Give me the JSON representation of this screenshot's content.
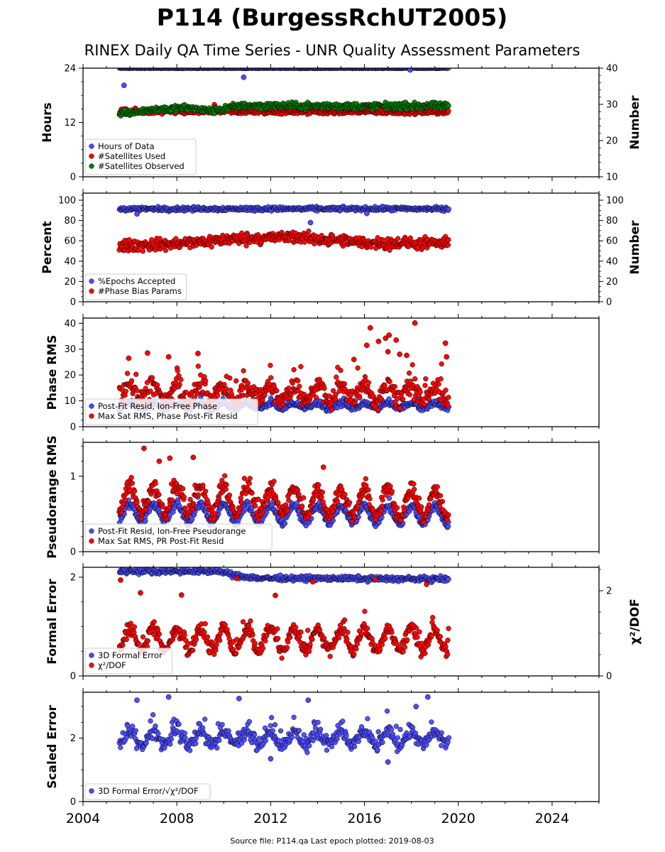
{
  "title": "P114 (BurgessRchUT2005)",
  "subtitle": "RINEX Daily QA Time Series - UNR Quality Assessment Parameters",
  "footer": "Source file: P114.qa Last epoch plotted: 2019-08-03",
  "colors": {
    "blue": "#4b4bff",
    "red": "#ff0000",
    "green": "#008000",
    "edge": "#000000"
  },
  "chart_data": [
    {
      "type": "scatter",
      "xlim": [
        2004,
        2026
      ],
      "xticks": [
        "2004",
        "2008",
        "2012",
        "2016",
        "2020",
        "2024"
      ],
      "ylabel": "Hours",
      "ylim": [
        0,
        24
      ],
      "yticks": [
        "0",
        "12",
        "24"
      ],
      "y2label": "Number",
      "y2lim": [
        10,
        40
      ],
      "y2ticks": [
        "10",
        "20",
        "30",
        "40"
      ],
      "legend": "lower-left",
      "series": [
        {
          "name": "Hours of Data",
          "color": "blue",
          "axis": "left",
          "x_range": [
            2005.55,
            2019.59
          ],
          "mean": 24.0,
          "spread": 0.05,
          "outliers": [
            [
              2005.75,
              20.2
            ],
            [
              2010.85,
              22.0
            ],
            [
              2017.95,
              23.6
            ]
          ]
        },
        {
          "name": "#Satellites Used",
          "color": "red",
          "axis": "right",
          "x_range": [
            2005.55,
            2019.59
          ],
          "mean": 28.0,
          "spread": 0.6,
          "outliers": [
            [
              2009.6,
              29.9
            ]
          ]
        },
        {
          "name": "#Satellites Observed",
          "color": "green",
          "axis": "right",
          "x_range": [
            2005.55,
            2019.59
          ],
          "segments": [
            [
              2005.55,
              27.5
            ],
            [
              2006.2,
              28.0
            ],
            [
              2007.0,
              28.6
            ],
            [
              2008.5,
              29.0
            ],
            [
              2009.5,
              28.2
            ],
            [
              2010.7,
              29.7
            ],
            [
              2013.0,
              29.6
            ],
            [
              2016.0,
              29.5
            ],
            [
              2019.59,
              29.6
            ]
          ],
          "spread": 0.7
        }
      ]
    },
    {
      "type": "scatter",
      "xlim": [
        2004,
        2026
      ],
      "ylabel": "Percent",
      "ylim": [
        0,
        107
      ],
      "yticks": [
        "0",
        "20",
        "40",
        "60",
        "80",
        "100"
      ],
      "y2label": "Number",
      "y2lim": [
        0,
        107
      ],
      "y2ticks": [
        "0",
        "20",
        "40",
        "60",
        "80",
        "100"
      ],
      "legend": "lower-left",
      "series": [
        {
          "name": "%Epochs Accepted",
          "color": "blue",
          "axis": "left",
          "x_range": [
            2005.55,
            2019.59
          ],
          "mean": 91.5,
          "spread": 1.6,
          "outliers": [
            [
              2013.7,
              78.0
            ],
            [
              2006.3,
              86.5
            ],
            [
              2016.1,
              87.0
            ]
          ]
        },
        {
          "name": "#Phase Bias Params",
          "color": "red",
          "axis": "right",
          "x_range": [
            2005.55,
            2019.59
          ],
          "segments": [
            [
              2005.55,
              55
            ],
            [
              2008.0,
              57
            ],
            [
              2010.5,
              62
            ],
            [
              2013.0,
              64
            ],
            [
              2016.0,
              58
            ],
            [
              2019.59,
              57
            ]
          ],
          "spread": 4.5
        }
      ]
    },
    {
      "type": "scatter",
      "xlim": [
        2004,
        2026
      ],
      "ylabel": "Phase RMS",
      "ylim": [
        0,
        42
      ],
      "yticks": [
        "0",
        "10",
        "20",
        "30",
        "40"
      ],
      "legend": "lower-left",
      "series": [
        {
          "name": "Post-Fit Resid, Ion-Free Phase",
          "color": "blue",
          "axis": "left",
          "x_range": [
            2005.55,
            2019.59
          ],
          "mean": 8.0,
          "spread": 0.8,
          "seasonal": 1.0
        },
        {
          "name": "Max Sat RMS, Phase Post-Fit Resid",
          "color": "red",
          "axis": "left",
          "x_range": [
            2005.55,
            2019.59
          ],
          "mean": 13.0,
          "spread": 3.0,
          "seasonal": 3.0,
          "outliers": [
            [
              2016.25,
              38.2
            ],
            [
              2016.1,
              31.5
            ],
            [
              2016.6,
              33.0
            ],
            [
              2016.9,
              34.2
            ],
            [
              2017.05,
              35.4
            ],
            [
              2017.35,
              33.5
            ],
            [
              2018.15,
              40.1
            ],
            [
              2019.45,
              32.3
            ],
            [
              2019.5,
              27.0
            ],
            [
              2017.0,
              29.0
            ],
            [
              2017.5,
              28.0
            ],
            [
              2017.8,
              27.6
            ],
            [
              2015.55,
              26.0
            ],
            [
              2006.75,
              28.5
            ],
            [
              2008.9,
              28.3
            ],
            [
              2007.65,
              27.0
            ],
            [
              2005.95,
              26.5
            ]
          ]
        }
      ]
    },
    {
      "type": "scatter",
      "xlim": [
        2004,
        2026
      ],
      "ylabel": "Pseudorange RMS",
      "ylim": [
        0,
        1.45
      ],
      "yticks": [
        "0",
        "1"
      ],
      "legend": "lower-left",
      "series": [
        {
          "name": "Post-Fit Resid, Ion-Free Pseudorange",
          "color": "blue",
          "axis": "left",
          "x_range": [
            2005.55,
            2019.59
          ],
          "mean": 0.52,
          "spread": 0.04,
          "seasonal": 0.12,
          "trend": -0.003
        },
        {
          "name": "Max Sat RMS, PR Post-Fit Resid",
          "color": "red",
          "axis": "left",
          "x_range": [
            2005.55,
            2019.59
          ],
          "mean": 0.7,
          "spread": 0.07,
          "seasonal": 0.18,
          "trend": -0.005,
          "outliers": [
            [
              2006.6,
              1.37
            ],
            [
              2007.7,
              1.24
            ],
            [
              2008.7,
              1.25
            ],
            [
              2007.25,
              1.2
            ],
            [
              2014.25,
              1.12
            ]
          ]
        }
      ]
    },
    {
      "type": "scatter",
      "xlim": [
        2004,
        2026
      ],
      "ylabel": "Formal Error",
      "ylim": [
        0,
        2.2
      ],
      "yticks": [
        "0",
        "2"
      ],
      "y2label": "χ²/DOF",
      "y2lim": [
        0,
        2.55
      ],
      "y2ticks": [
        "0",
        "2"
      ],
      "legend": "lower-left",
      "series": [
        {
          "name": "3D Formal Error",
          "color": "blue",
          "axis": "left",
          "x_range": [
            2005.55,
            2019.59
          ],
          "segments": [
            [
              2005.55,
              2.12
            ],
            [
              2009.8,
              2.12
            ],
            [
              2010.3,
              2.05
            ],
            [
              2011.5,
              1.98
            ],
            [
              2016.0,
              1.97
            ],
            [
              2019.59,
              1.96
            ]
          ],
          "spread": 0.04
        },
        {
          "name": "χ²/DOF",
          "color": "red",
          "axis": "right",
          "x_range": [
            2005.55,
            2019.59
          ],
          "mean": 0.85,
          "spread": 0.12,
          "seasonal": 0.25,
          "outliers": [
            [
              2005.6,
              2.25
            ],
            [
              2010.55,
              2.29
            ],
            [
              2013.8,
              2.21
            ],
            [
              2016.45,
              2.27
            ],
            [
              2018.65,
              2.15
            ],
            [
              2006.45,
              1.95
            ],
            [
              2008.2,
              1.9
            ],
            [
              2012.2,
              1.89
            ]
          ]
        }
      ]
    },
    {
      "type": "scatter",
      "xlim": [
        2004,
        2026
      ],
      "xticks": [
        "2004",
        "2008",
        "2012",
        "2016",
        "2020",
        "2024"
      ],
      "ylabel": "Scaled Error",
      "ylim": [
        0,
        3.45
      ],
      "yticks": [
        "0",
        "2"
      ],
      "legend": "lower-left",
      "series": [
        {
          "name": "3D Formal Error/√χ²/DOF",
          "color": "blue",
          "axis": "left",
          "x_range": [
            2005.55,
            2019.59
          ],
          "mean": 2.0,
          "spread": 0.18,
          "seasonal": 0.2,
          "outliers": [
            [
              2007.65,
              3.3
            ],
            [
              2010.65,
              3.25
            ],
            [
              2018.7,
              3.3
            ],
            [
              2006.3,
              3.2
            ],
            [
              2013.6,
              3.2
            ],
            [
              2018.2,
              3.0
            ],
            [
              2012.0,
              1.35
            ],
            [
              2017.0,
              1.25
            ]
          ]
        }
      ]
    }
  ],
  "legend_labels": {
    "p0": [
      "Hours of Data",
      "#Satellites Used",
      "#Satellites Observed"
    ],
    "p1": [
      "%Epochs Accepted",
      "#Phase Bias Params"
    ],
    "p2": [
      "Post-Fit Resid, Ion-Free Phase",
      "Max Sat RMS, Phase Post-Fit Resid"
    ],
    "p3": [
      "Post-Fit Resid, Ion-Free Pseudorange",
      "Max Sat RMS, PR Post-Fit Resid"
    ],
    "p4": [
      "3D Formal Error",
      "χ²/DOF"
    ],
    "p5": [
      "3D Formal Error/√χ²/DOF"
    ]
  }
}
